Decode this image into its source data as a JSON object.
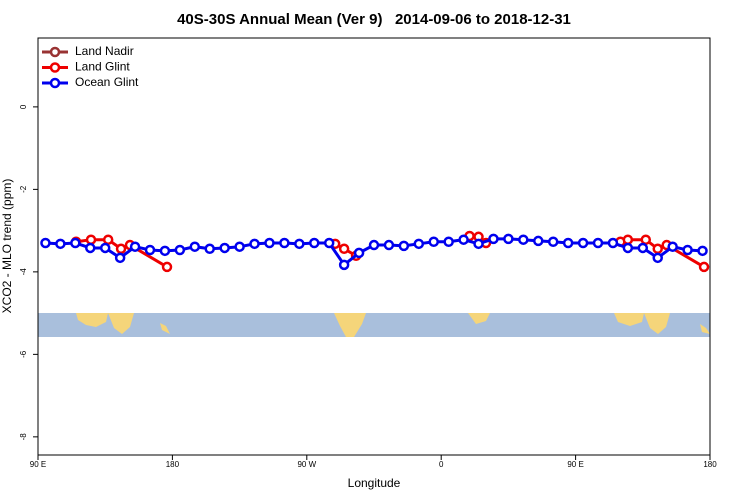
{
  "chart_data": {
    "type": "line",
    "title": "40S-30S Annual Mean (Ver 9)   2014-09-06 to 2018-12-31",
    "x_label": "Longitude",
    "y_label": "XCO2 - MLO trend (ppm)",
    "xlim": [
      90,
      540
    ],
    "ylim": [
      -8.44,
      1.67
    ],
    "xticks": [
      {
        "value": 90,
        "label": "90 E"
      },
      180,
      {
        "value": 270,
        "label": "90 W"
      },
      {
        "value": 360,
        "label": "0"
      },
      {
        "value": 450,
        "label": "90 E"
      },
      {
        "value": 540,
        "label": "180"
      }
    ],
    "yticks": [
      0,
      -2,
      -4,
      -6,
      -8
    ],
    "legend": "top-left",
    "series": [
      {
        "name": "Land Nadir",
        "color": "#993333",
        "x": [],
        "values": []
      },
      {
        "name": "Land Glint",
        "color": "#ee0000",
        "x": [
          115.5,
          125.5,
          137,
          145.6,
          151.6,
          176.4,
          null,
          289,
          295,
          303,
          null,
          379,
          385,
          390,
          null,
          480,
          485,
          497,
          505,
          511,
          536
        ],
        "values": [
          -3.27,
          -3.22,
          -3.22,
          -3.44,
          -3.35,
          -3.88,
          null,
          -3.32,
          -3.44,
          -3.61,
          null,
          -3.13,
          -3.15,
          -3.3,
          null,
          -3.27,
          -3.22,
          -3.22,
          -3.44,
          -3.35,
          -3.88
        ]
      },
      {
        "name": "Ocean Glint",
        "color": "#0000ee",
        "x": [
          95,
          105,
          115,
          125,
          135,
          145,
          155,
          165,
          175,
          185,
          195,
          205,
          215,
          225,
          235,
          245,
          255,
          265,
          275,
          285,
          295,
          305,
          315,
          325,
          335,
          345,
          355,
          365,
          375,
          385,
          395,
          405,
          415,
          425,
          435,
          445,
          455,
          465,
          475,
          485,
          495,
          505,
          515,
          525,
          535
        ],
        "values": [
          -3.3,
          -3.32,
          -3.3,
          -3.42,
          -3.42,
          -3.66,
          -3.39,
          -3.47,
          -3.49,
          -3.47,
          -3.39,
          -3.44,
          -3.42,
          -3.39,
          -3.32,
          -3.3,
          -3.3,
          -3.32,
          -3.3,
          -3.3,
          -3.83,
          -3.54,
          -3.35,
          -3.35,
          -3.37,
          -3.32,
          -3.27,
          -3.27,
          -3.22,
          -3.32,
          -3.2,
          -3.2,
          -3.22,
          -3.25,
          -3.27,
          -3.3,
          -3.3,
          -3.3,
          -3.3,
          -3.42,
          -3.42,
          -3.66,
          -3.39,
          -3.47,
          -3.49
        ]
      }
    ]
  }
}
